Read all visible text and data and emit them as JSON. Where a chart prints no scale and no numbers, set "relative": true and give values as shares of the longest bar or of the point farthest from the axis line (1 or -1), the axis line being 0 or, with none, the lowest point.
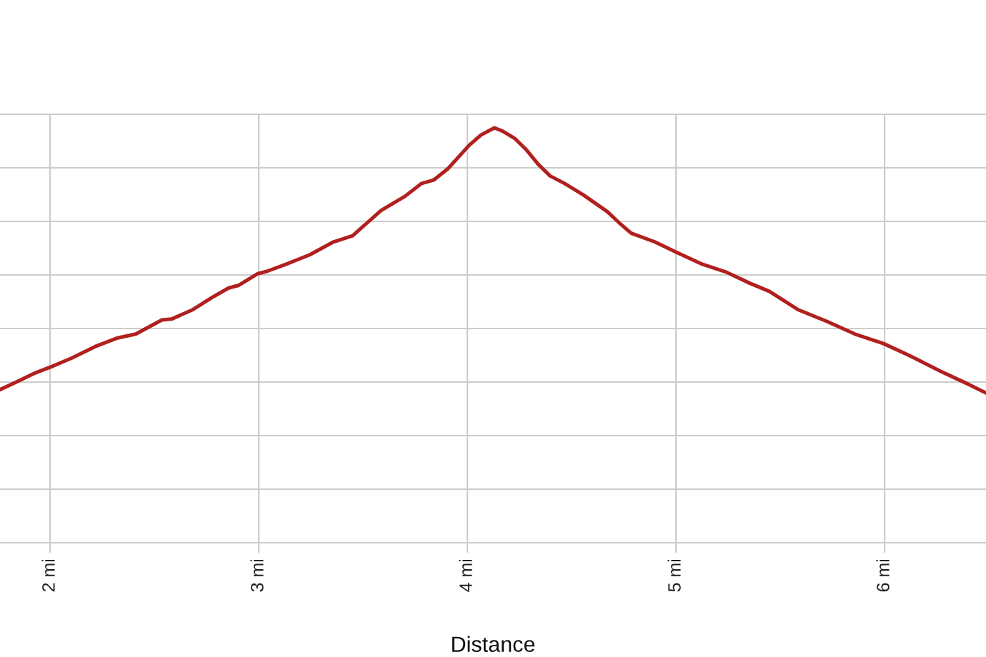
{
  "chart_data": {
    "type": "line",
    "xlabel": "Distance",
    "relative": true,
    "grid": true,
    "tick_labels": "x",
    "xlim": [
      1.76,
      6.486
    ],
    "xticks": [
      {
        "value": 2,
        "label": "2 mi"
      },
      {
        "value": 3,
        "label": "3 mi"
      },
      {
        "value": 4,
        "label": "4 mi"
      },
      {
        "value": 5,
        "label": "5 mi"
      },
      {
        "value": 6,
        "label": "6 mi"
      }
    ],
    "series": [
      {
        "color": "#b0201e",
        "x": [
          1.76,
          1.829,
          1.932,
          2.005,
          2.103,
          2.217,
          2.32,
          2.411,
          2.536,
          2.582,
          2.685,
          2.776,
          2.856,
          2.902,
          2.993,
          3.039,
          3.13,
          3.245,
          3.358,
          3.45,
          3.495,
          3.587,
          3.701,
          3.781,
          3.838,
          3.906,
          4.009,
          4.066,
          4.13,
          4.169,
          4.226,
          4.283,
          4.34,
          4.397,
          4.466,
          4.557,
          4.671,
          4.728,
          4.786,
          4.899,
          5.002,
          5.128,
          5.242,
          5.356,
          5.447,
          5.584,
          5.721,
          5.858,
          5.995,
          6.132,
          6.269,
          6.406,
          6.486
        ],
        "values": [
          0.369,
          0.385,
          0.41,
          0.424,
          0.445,
          0.473,
          0.493,
          0.503,
          0.537,
          0.539,
          0.562,
          0.591,
          0.614,
          0.62,
          0.648,
          0.654,
          0.671,
          0.694,
          0.725,
          0.74,
          0.76,
          0.801,
          0.835,
          0.866,
          0.874,
          0.901,
          0.958,
          0.983,
          1.0,
          0.992,
          0.975,
          0.947,
          0.912,
          0.884,
          0.866,
          0.838,
          0.798,
          0.771,
          0.746,
          0.725,
          0.7,
          0.671,
          0.652,
          0.625,
          0.606,
          0.562,
          0.534,
          0.503,
          0.48,
          0.448,
          0.413,
          0.381,
          0.361
        ]
      }
    ]
  }
}
